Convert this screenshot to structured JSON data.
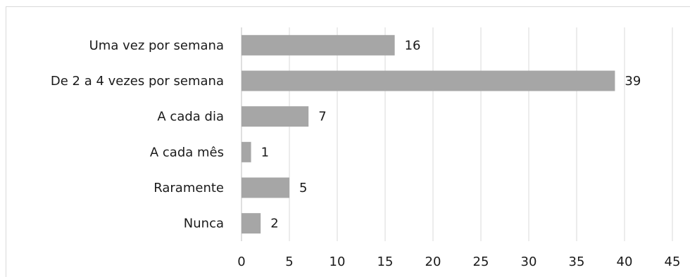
{
  "chart_data": {
    "type": "bar",
    "orientation": "horizontal",
    "categories": [
      "Uma vez por semana",
      "De 2 a 4 vezes por semana",
      "A cada dia",
      "A cada mês",
      "Raramente",
      "Nunca"
    ],
    "values": [
      16,
      39,
      7,
      1,
      5,
      2
    ],
    "xlim": [
      0,
      45
    ],
    "xticks": [
      "0",
      "5",
      "10",
      "15",
      "20",
      "25",
      "30",
      "35",
      "40",
      "45"
    ],
    "bar_color": "#a6a6a6",
    "grid": true,
    "data_labels": true,
    "legend": "none",
    "title": "",
    "xlabel": "",
    "ylabel": ""
  }
}
